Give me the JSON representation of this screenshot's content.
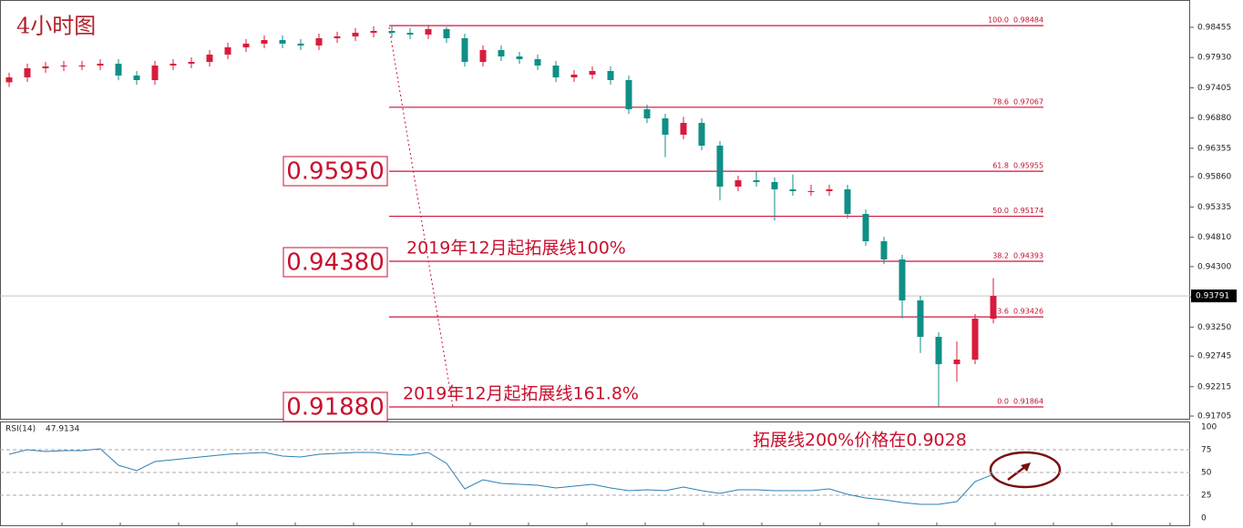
{
  "chart_data": [
    {
      "type": "candlestick",
      "title": "4小时图",
      "open": [
        0.975,
        0.97586,
        0.97744,
        0.97775,
        0.97791,
        0.97791,
        0.97823,
        0.97617,
        0.97538,
        0.97791,
        0.97823,
        0.97854,
        0.97981,
        0.98107,
        0.98171,
        0.98234,
        0.98171,
        0.98139,
        0.98265,
        0.98297,
        0.9836,
        0.98392,
        0.9836,
        0.98329,
        0.98423,
        0.98265,
        0.97854,
        0.9806,
        0.97949,
        0.97902,
        0.97791,
        0.97586,
        0.97633,
        0.97696,
        0.97538,
        0.97032,
        0.96874,
        0.9659,
        0.96795,
        0.964,
        0.95689,
        0.95799,
        0.95768,
        0.95641,
        0.9561,
        0.9561,
        0.95641,
        0.95214,
        0.9474,
        0.94424,
        0.93713,
        0.9308,
        0.92606,
        0.92685,
        0.93396
      ],
      "high": [
        0.97666,
        0.97824,
        0.97855,
        0.97871,
        0.97871,
        0.97903,
        0.97903,
        0.97697,
        0.97871,
        0.97903,
        0.97934,
        0.98061,
        0.98187,
        0.98251,
        0.98314,
        0.98314,
        0.98251,
        0.98345,
        0.98377,
        0.9844,
        0.98472,
        0.98472,
        0.9844,
        0.98484,
        0.9846,
        0.98345,
        0.9814,
        0.9814,
        0.98029,
        0.97982,
        0.97871,
        0.97713,
        0.97776,
        0.97776,
        0.97618,
        0.97112,
        0.96954,
        0.969,
        0.96875,
        0.9648,
        0.95879,
        0.9595,
        0.95848,
        0.959,
        0.9572,
        0.95721,
        0.95721,
        0.95294,
        0.9482,
        0.94504,
        0.93793,
        0.9316,
        0.93,
        0.93476,
        0.941
      ],
      "low": [
        0.9742,
        0.97506,
        0.97664,
        0.97695,
        0.97711,
        0.97711,
        0.97537,
        0.97458,
        0.97458,
        0.97711,
        0.97743,
        0.97774,
        0.97901,
        0.98027,
        0.98091,
        0.98091,
        0.98059,
        0.98059,
        0.98185,
        0.98217,
        0.9828,
        0.9828,
        0.98249,
        0.98249,
        0.98185,
        0.97774,
        0.97774,
        0.97869,
        0.97822,
        0.97711,
        0.97506,
        0.97506,
        0.97553,
        0.97458,
        0.96952,
        0.96794,
        0.962,
        0.9651,
        0.9632,
        0.9545,
        0.95609,
        0.95688,
        0.951,
        0.9553,
        0.9553,
        0.9553,
        0.95134,
        0.9466,
        0.94344,
        0.934,
        0.928,
        0.91864,
        0.923,
        0.92605,
        0.93316
      ],
      "close": [
        0.97586,
        0.97744,
        0.97775,
        0.97791,
        0.97791,
        0.97823,
        0.97617,
        0.97538,
        0.97791,
        0.97823,
        0.97854,
        0.97981,
        0.98107,
        0.98171,
        0.98234,
        0.98171,
        0.98139,
        0.98265,
        0.98297,
        0.9836,
        0.98392,
        0.9836,
        0.98329,
        0.98423,
        0.98265,
        0.97854,
        0.9806,
        0.97949,
        0.97902,
        0.97791,
        0.97586,
        0.97633,
        0.97696,
        0.97538,
        0.97032,
        0.96874,
        0.9659,
        0.96795,
        0.964,
        0.95689,
        0.95799,
        0.95768,
        0.95641,
        0.9561,
        0.9561,
        0.95641,
        0.95214,
        0.9474,
        0.94424,
        0.93713,
        0.9308,
        0.92606,
        0.92685,
        0.93396,
        0.93791
      ],
      "colors": {
        "up": "#d81b3c",
        "down": "#0f8f86"
      },
      "ylim": [
        0.91658,
        0.98929
      ],
      "yticks": [
        0.98455,
        {
          "value": 0.9793,
          "label": "0.97930"
        },
        0.97405,
        {
          "value": 0.9688,
          "label": "0.96880"
        },
        0.96355,
        {
          "value": 0.9586,
          "label": "0.95860"
        },
        0.95335,
        {
          "value": 0.9481,
          "label": "0.94810"
        },
        {
          "value": 0.943,
          "label": "0.94300"
        },
        0.93775,
        {
          "value": 0.9325,
          "label": "0.93250"
        },
        0.92745,
        0.92215,
        0.91705
      ],
      "current_price": 0.93791,
      "fib_color": "#d0143c",
      "fib_levels": [
        {
          "ratio": "100.0",
          "price": 0.98484
        },
        {
          "ratio": "78.6",
          "price": 0.97067
        },
        {
          "ratio": "61.8",
          "price": 0.95955
        },
        {
          "ratio": "50.0",
          "price": 0.95174
        },
        {
          "ratio": "38.2",
          "price": 0.94393
        },
        {
          "ratio": "23.6",
          "price": 0.93426
        },
        {
          "ratio": "0.0",
          "price": 0.91864
        }
      ],
      "price_boxes": [
        "0.95950",
        "0.94380",
        "0.91880"
      ],
      "annotations": [
        "2019年12月起拓展线100%",
        "2019年12月起拓展线161.8%",
        "拓展线200%价格在0.9028"
      ]
    },
    {
      "type": "line",
      "title": "RSI(14)",
      "values": [
        70,
        75,
        73,
        74,
        74,
        76,
        58,
        52,
        62,
        64,
        66,
        68,
        70,
        71,
        72,
        68,
        67,
        70,
        71,
        72,
        72,
        70,
        69,
        72,
        60,
        32,
        42,
        38,
        37,
        36,
        33,
        35,
        37,
        33,
        30,
        31,
        30,
        34,
        30,
        27,
        31,
        31,
        30,
        30,
        30,
        32,
        26,
        22,
        20,
        17,
        15,
        15,
        18,
        40,
        47.9134
      ],
      "color": "#2b7fb5",
      "ylim": [
        0,
        100
      ],
      "yticks": [
        0,
        25,
        50,
        75,
        100
      ]
    }
  ]
}
